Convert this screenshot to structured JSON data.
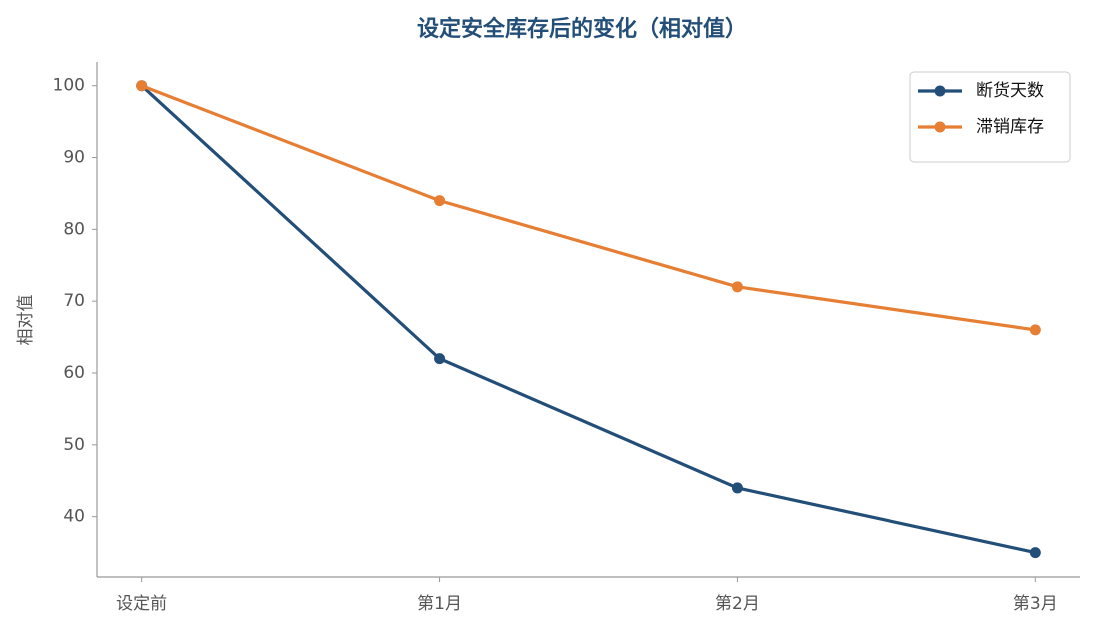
{
  "chart_data": {
    "type": "line",
    "title": "设定安全库存后的变化（相对值）",
    "y_label": "相对值",
    "categories": [
      "设定前",
      "第1月",
      "第2月",
      "第3月"
    ],
    "series": [
      {
        "name": "断货天数",
        "color": "#234e78",
        "values": [
          100,
          62,
          44,
          35
        ]
      },
      {
        "name": "滞销库存",
        "color": "#e67e33",
        "values": [
          100,
          84,
          72,
          66
        ]
      }
    ],
    "ylim": [
      31.6,
      103.3
    ],
    "yticks": [
      40,
      50,
      60,
      70,
      80,
      90,
      100
    ],
    "grid": false,
    "legend": "upper right"
  }
}
